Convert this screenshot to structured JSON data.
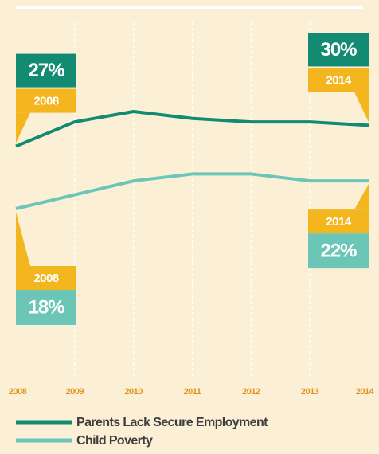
{
  "chart_data": {
    "type": "line",
    "categories": [
      "2008",
      "2009",
      "2010",
      "2011",
      "2012",
      "2013",
      "2014"
    ],
    "series": [
      {
        "name": "Parents Lack Secure Employment",
        "color": "#138a72",
        "values": [
          27,
          30.5,
          32,
          31,
          30.5,
          30.5,
          30
        ],
        "value_labels": [
          "27%",
          null,
          null,
          null,
          null,
          null,
          "30%"
        ]
      },
      {
        "name": "Child Poverty",
        "color": "#6cc6b8",
        "values": [
          18,
          20,
          22,
          23,
          23,
          22,
          22
        ],
        "value_labels": [
          "18%",
          null,
          null,
          null,
          null,
          null,
          "22%"
        ]
      }
    ],
    "grid": true
  }
}
